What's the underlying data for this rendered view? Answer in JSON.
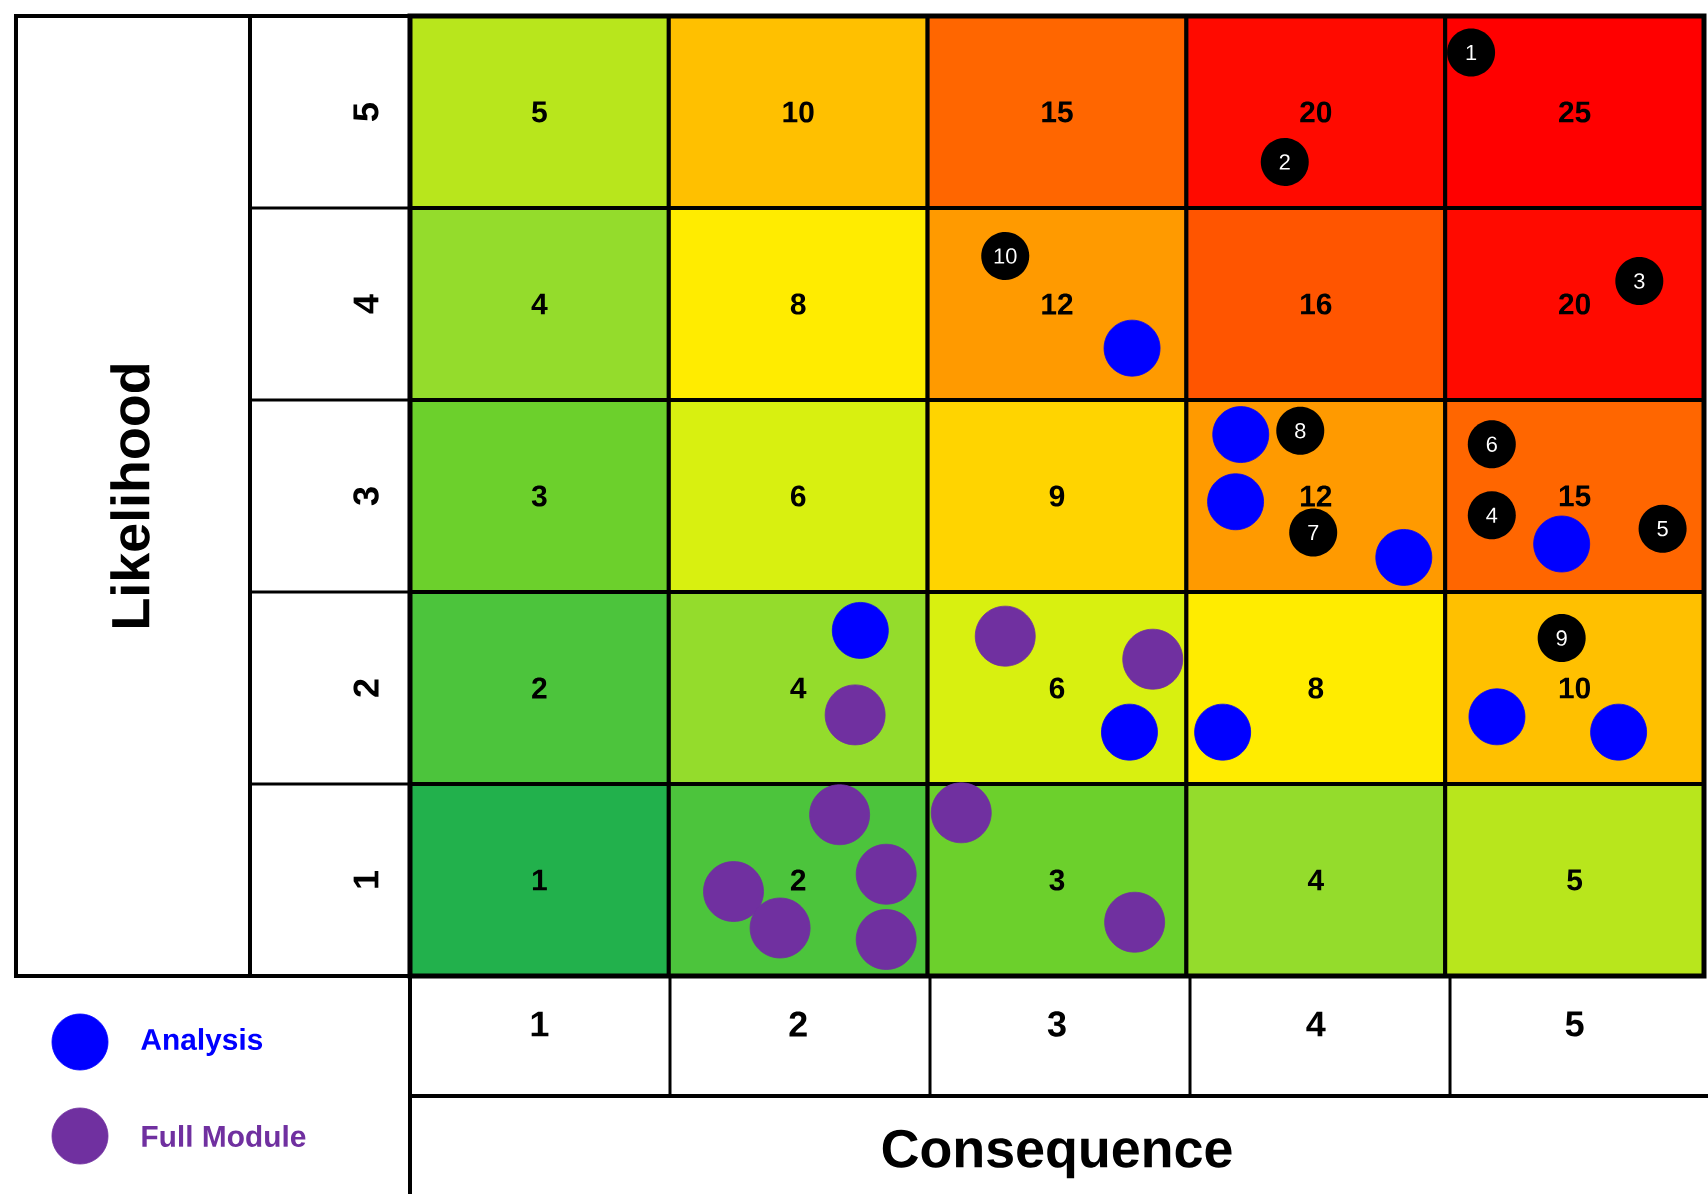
{
  "chart_data": {
    "type": "heatmap",
    "xlabel": "Consequence",
    "ylabel": "Likelihood",
    "xlim": [
      0.5,
      5.5
    ],
    "ylim": [
      0.5,
      5.5
    ],
    "xticks": [
      1,
      2,
      3,
      4,
      5
    ],
    "yticks": [
      1,
      2,
      3,
      4,
      5
    ],
    "cells": [
      [
        5,
        10,
        15,
        20,
        25
      ],
      [
        4,
        8,
        12,
        16,
        20
      ],
      [
        3,
        6,
        9,
        12,
        15
      ],
      [
        2,
        4,
        6,
        8,
        10
      ],
      [
        1,
        2,
        3,
        4,
        5
      ]
    ],
    "data_labels": true,
    "legend": "bottom left",
    "marker": "circle",
    "series": [
      {
        "type": "scatter",
        "name": "Analysis",
        "color": "#0000ff",
        "x": [
          3.29,
          3.71,
          3.69,
          4.34,
          4.95,
          2.24,
          3.28,
          3.64,
          4.7,
          5.17
        ],
        "values": [
          3.77,
          3.32,
          2.97,
          2.68,
          2.75,
          2.3,
          1.77,
          1.77,
          1.85,
          1.77
        ],
        "value_labels": [
          null,
          null,
          null,
          null,
          null,
          null,
          null,
          null,
          null,
          null
        ]
      },
      {
        "type": "scatter",
        "name": "Full Module",
        "color": "#7030a0",
        "x": [
          2.8,
          3.37,
          2.22,
          2.16,
          2.63,
          1.75,
          2.34,
          1.93,
          2.34,
          3.3
        ],
        "values": [
          2.27,
          2.15,
          1.86,
          1.34,
          1.35,
          0.94,
          1.03,
          0.75,
          0.69,
          0.78
        ],
        "value_labels": [
          null,
          null,
          null,
          null,
          null,
          null,
          null,
          null,
          null,
          null
        ]
      }
    ],
    "annotations": [
      {
        "text": "1",
        "x": 4.6,
        "y": 5.31
      },
      {
        "text": "2",
        "x": 3.88,
        "y": 4.74
      },
      {
        "text": "3",
        "x": 5.25,
        "y": 4.12
      },
      {
        "text": "4",
        "x": 4.68,
        "y": 2.9
      },
      {
        "text": "5",
        "x": 5.34,
        "y": 2.83
      },
      {
        "text": "6",
        "x": 4.68,
        "y": 3.27
      },
      {
        "text": "7",
        "x": 3.99,
        "y": 2.81
      },
      {
        "text": "8",
        "x": 3.94,
        "y": 3.34
      },
      {
        "text": "9",
        "x": 4.95,
        "y": 2.26
      },
      {
        "text": "10",
        "x": 2.8,
        "y": 4.25
      }
    ]
  }
}
